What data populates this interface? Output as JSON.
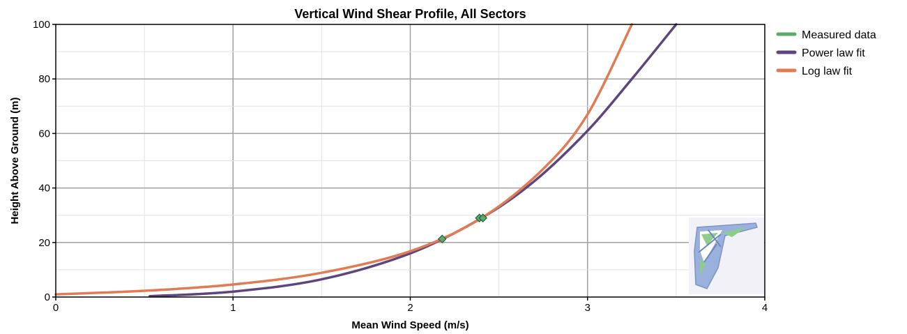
{
  "chart_data": {
    "type": "line",
    "title": "Vertical Wind Shear Profile, All Sectors",
    "xlabel": "Mean Wind Speed (m/s)",
    "ylabel": "Height Above Ground (m)",
    "xlim": [
      0,
      4
    ],
    "ylim": [
      0,
      100
    ],
    "xticks": [
      "0",
      "1",
      "2",
      "3",
      "4"
    ],
    "yticks": [
      "0",
      "20",
      "40",
      "60",
      "80",
      "100"
    ],
    "grid": true,
    "legend_position": "right",
    "series": [
      {
        "name": "Measured data",
        "kind": "scatter",
        "color": "#5aaa6e",
        "points": [
          [
            2.18,
            21.3
          ],
          [
            2.39,
            29.0
          ],
          [
            2.41,
            29.0
          ]
        ]
      },
      {
        "name": "Power law fit",
        "kind": "line",
        "color": "#5d467d",
        "points": [
          [
            0.53,
            0.3
          ],
          [
            1.0,
            2.0
          ],
          [
            1.5,
            6.5
          ],
          [
            2.0,
            16.0
          ],
          [
            2.4,
            28.9
          ],
          [
            2.7,
            42.5
          ],
          [
            3.0,
            61.0
          ],
          [
            3.25,
            80.0
          ],
          [
            3.5,
            100.0
          ]
        ]
      },
      {
        "name": "Log law fit",
        "kind": "line",
        "color": "#e07b54",
        "points": [
          [
            0.0,
            1.0
          ],
          [
            0.5,
            2.3
          ],
          [
            1.0,
            4.6
          ],
          [
            1.5,
            8.9
          ],
          [
            2.0,
            16.8
          ],
          [
            2.4,
            28.9
          ],
          [
            2.75,
            47.0
          ],
          [
            3.0,
            67.0
          ],
          [
            3.25,
            100.0
          ]
        ]
      }
    ]
  },
  "watermark": {
    "icon": "windographer-logo-icon",
    "colors": [
      "#8ca5d8",
      "#7fc27f",
      "#ffffff"
    ]
  }
}
